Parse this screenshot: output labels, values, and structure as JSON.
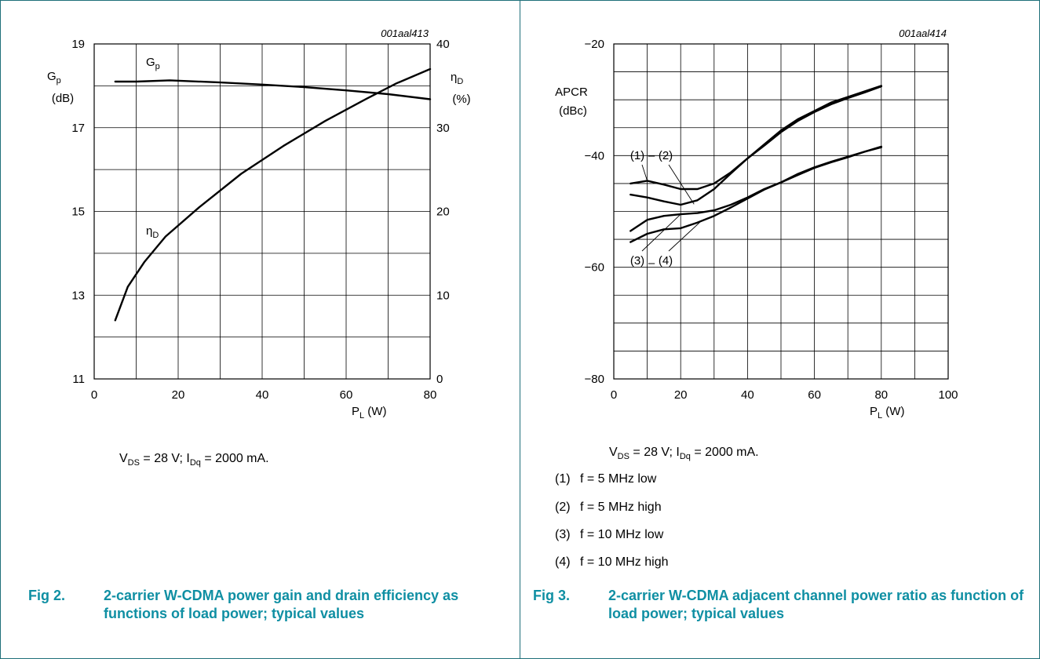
{
  "fig2": {
    "code": "001aal413",
    "condition": {
      "vds_sub": "DS",
      "vds_value": " = 28 V; I",
      "idq_sub": "Dq",
      "idq_value": " = 2000 mA."
    },
    "caption_label": "Fig 2.",
    "caption_text": "2-carrier W-CDMA power gain and drain efficiency as functions of load power; typical values"
  },
  "fig3": {
    "code": "001aal414",
    "condition": {
      "vds_sub": "DS",
      "vds_value": " = 28 V; I",
      "idq_sub": "Dq",
      "idq_value": " = 2000 mA."
    },
    "legend": [
      {
        "num": "(1)",
        "text": "f = 5 MHz low"
      },
      {
        "num": "(2)",
        "text": "f = 5 MHz high"
      },
      {
        "num": "(3)",
        "text": "f = 10 MHz low"
      },
      {
        "num": "(4)",
        "text": "f = 10 MHz high"
      }
    ],
    "caption_label": "Fig 3.",
    "caption_text": "2-carrier W-CDMA adjacent channel power ratio as function of load power; typical values"
  },
  "chart_data": [
    {
      "type": "line",
      "xlabel": {
        "main": "P",
        "sub": "L",
        "unit": " (W)"
      },
      "ylabel_left": {
        "main": "G",
        "sub": "p",
        "unit": "(dB)"
      },
      "ylabel_right": {
        "main": "η",
        "sub": "D",
        "unit": "(%)"
      },
      "xlim": [
        0,
        80
      ],
      "ylim_left": [
        11,
        19
      ],
      "ylim_right": [
        0,
        40
      ],
      "x_ticks": [
        "0",
        "20",
        "40",
        "60",
        "80"
      ],
      "y_ticks_left": [
        "11",
        "13",
        "15",
        "17",
        "19"
      ],
      "y_ticks_right": [
        "0",
        "10",
        "20",
        "30",
        "40"
      ],
      "grid": true,
      "series": [
        {
          "name": "Gp",
          "name_main": "G",
          "name_sub": "p",
          "axis": "left",
          "x": [
            5,
            10,
            18,
            30,
            40,
            50,
            60,
            70,
            80
          ],
          "y": [
            18.1,
            18.1,
            18.13,
            18.08,
            18.03,
            17.97,
            17.89,
            17.8,
            17.68
          ]
        },
        {
          "name": "ηD",
          "name_main": "η",
          "name_sub": "D",
          "axis": "right",
          "x": [
            5,
            8,
            12,
            17,
            25,
            35,
            45,
            55,
            65,
            72,
            80
          ],
          "y": [
            7,
            11,
            14,
            17,
            20.5,
            24.5,
            27.8,
            30.8,
            33.5,
            35.3,
            37
          ]
        }
      ]
    },
    {
      "type": "line",
      "xlabel": {
        "main": "P",
        "sub": "L",
        "unit": " (W)"
      },
      "ylabel": {
        "main": "APCR",
        "unit": "(dBc)"
      },
      "xlim": [
        0,
        100
      ],
      "ylim": [
        -80,
        -20
      ],
      "x_ticks": [
        "0",
        "20",
        "40",
        "60",
        "80",
        "100"
      ],
      "y_ticks": [
        "−80",
        "−60",
        "−40",
        "−20"
      ],
      "grid": true,
      "annotations": {
        "top": [
          "(1)",
          "(2)"
        ],
        "bottom": [
          "(3)",
          "(4)"
        ],
        "dash": "–"
      },
      "series": [
        {
          "label": "(1)",
          "x": [
            5,
            10,
            15,
            20,
            25,
            30,
            35,
            40,
            45,
            50,
            55,
            60,
            65,
            70,
            75,
            80
          ],
          "y": [
            -45,
            -44.5,
            -45.2,
            -46,
            -46,
            -45,
            -43,
            -40.5,
            -38,
            -35.5,
            -33.5,
            -32,
            -30.5,
            -29.5,
            -28.5,
            -27.5
          ]
        },
        {
          "label": "(2)",
          "x": [
            5,
            10,
            15,
            20,
            25,
            30,
            35,
            40,
            45,
            50,
            55,
            60,
            65,
            70,
            75,
            80
          ],
          "y": [
            -47,
            -47.5,
            -48.2,
            -48.8,
            -48,
            -46,
            -43.2,
            -40.5,
            -38.2,
            -35.8,
            -33.8,
            -32.2,
            -30.8,
            -29.7,
            -28.7,
            -27.6
          ]
        },
        {
          "label": "(3)",
          "x": [
            5,
            10,
            15,
            20,
            25,
            30,
            35,
            40,
            45,
            50,
            55,
            60,
            65,
            70,
            75,
            80
          ],
          "y": [
            -53.5,
            -51.5,
            -50.8,
            -50.5,
            -50.3,
            -49.8,
            -48.8,
            -47.5,
            -46,
            -44.8,
            -43.5,
            -42.2,
            -41.2,
            -40.3,
            -39.3,
            -38.4
          ]
        },
        {
          "label": "(4)",
          "x": [
            5,
            10,
            15,
            20,
            25,
            30,
            35,
            40,
            45,
            50,
            55,
            60,
            65,
            70,
            75,
            80
          ],
          "y": [
            -55.5,
            -54,
            -53.2,
            -53,
            -52,
            -50.8,
            -49.3,
            -47.7,
            -46.1,
            -44.8,
            -43.3,
            -42.1,
            -41.1,
            -40.2,
            -39.3,
            -38.5
          ]
        }
      ]
    }
  ]
}
